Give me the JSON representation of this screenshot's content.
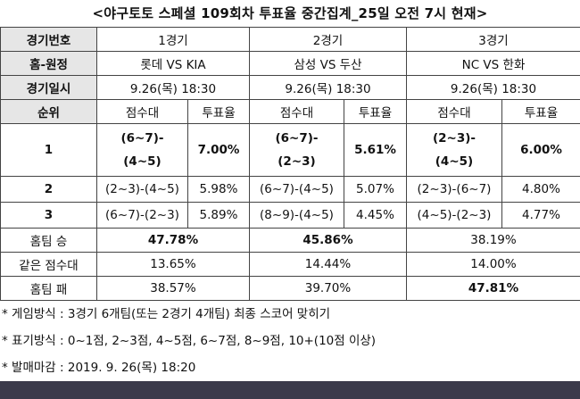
{
  "title": "<야구토토 스페셜 109회차 투표율 중간집계_25일 오전 7시 현재>",
  "labels": {
    "game_number": "경기번호",
    "matchup": "홈-원정",
    "game_date": "경기일시",
    "rank": "순위",
    "score_range": "점수대",
    "vote_rate": "투표율",
    "home_win": "홈팀 승",
    "same_score": "같은 점수대",
    "home_loss": "홈팀 패"
  },
  "games": [
    {
      "number": "1경기",
      "matchup": "롯데 VS KIA",
      "date": "9.26(목) 18:30"
    },
    {
      "number": "2경기",
      "matchup": "삼성 VS 두산",
      "date": "9.26(목) 18:30"
    },
    {
      "number": "3경기",
      "matchup": "NC VS 한화",
      "date": "9.26(목) 18:30"
    }
  ],
  "ranks": [
    {
      "rank": "1",
      "cells": [
        {
          "score_a": "(6~7)-",
          "score_b": "(4~5)",
          "rate": "7.00%"
        },
        {
          "score_a": "(6~7)-",
          "score_b": "(2~3)",
          "rate": "5.61%"
        },
        {
          "score_a": "(2~3)-",
          "score_b": "(4~5)",
          "rate": "6.00%"
        }
      ]
    },
    {
      "rank": "2",
      "cells": [
        {
          "score": "(2~3)-(4~5)",
          "rate": "5.98%"
        },
        {
          "score": "(6~7)-(4~5)",
          "rate": "5.07%"
        },
        {
          "score": "(2~3)-(6~7)",
          "rate": "4.80%"
        }
      ]
    },
    {
      "rank": "3",
      "cells": [
        {
          "score": "(6~7)-(2~3)",
          "rate": "5.89%"
        },
        {
          "score": "(8~9)-(4~5)",
          "rate": "4.45%"
        },
        {
          "score": "(4~5)-(2~3)",
          "rate": "4.77%"
        }
      ]
    }
  ],
  "outcomes": {
    "home_win": [
      "47.78%",
      "45.86%",
      "38.19%"
    ],
    "same_score": [
      "13.65%",
      "14.44%",
      "14.00%"
    ],
    "home_loss": [
      "38.57%",
      "39.70%",
      "47.81%"
    ]
  },
  "notes": [
    "* 게임방식 : 3경기 6개팀(또는 2경기 4개팀) 최종 스코어 맞히기",
    "* 표기방식 : 0~1점, 2~3점, 4~5점, 6~7점, 8~9점, 10+(10점 이상)",
    "* 발매마감 : 2019. 9. 26(목) 18:20"
  ],
  "colors": {
    "header_bg": "#e6e6e6",
    "footer_bar": "#3b3a4b",
    "border": "#444444"
  }
}
